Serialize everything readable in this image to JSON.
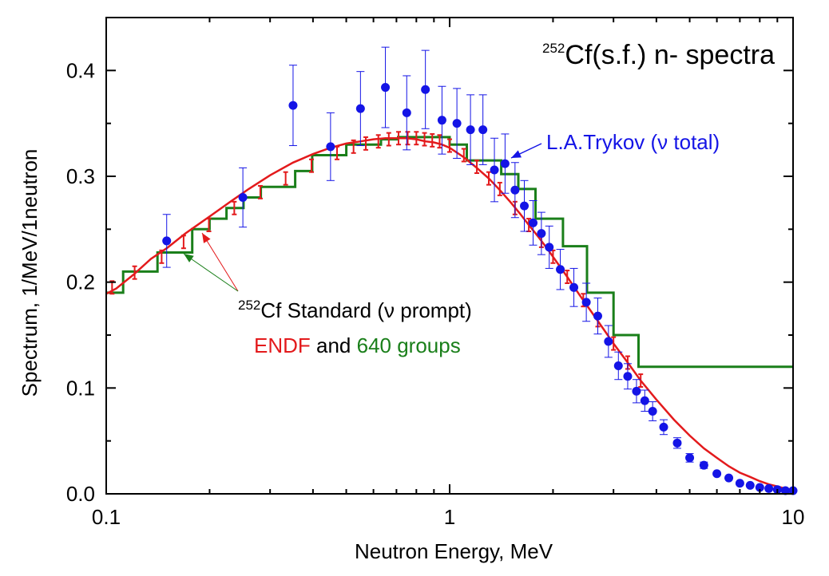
{
  "chart_data": {
    "type": "line",
    "title": "Cf(s.f.) n- spectra",
    "title_superscript": "252",
    "xlabel": "Neutron Energy, MeV",
    "ylabel": "Spectrum, 1/MeV/1neutron",
    "x_scale": "log",
    "xlim": [
      0.1,
      10
    ],
    "ylim": [
      0.0,
      0.45
    ],
    "x_ticks": [
      {
        "value": 0.1,
        "label": "0.1"
      },
      {
        "value": 1,
        "label": "1"
      },
      {
        "value": 10,
        "label": "10"
      }
    ],
    "y_ticks": [
      {
        "value": 0.0,
        "label": "0.0"
      },
      {
        "value": 0.1,
        "label": "0.1"
      },
      {
        "value": 0.2,
        "label": "0.2"
      },
      {
        "value": 0.3,
        "label": "0.3"
      },
      {
        "value": 0.4,
        "label": "0.4"
      }
    ],
    "grid": false,
    "colors": {
      "endf": "#e31a1c",
      "groups": "#1a7f1a",
      "trykov": "#1414e6"
    },
    "annotations": {
      "standard_sup": "252",
      "standard_text": "Cf Standard (ν prompt)",
      "endf_word": "ENDF",
      "and_word": " and ",
      "groups_word": "640 groups",
      "trykov_label": "L.A.Trykov (ν total)"
    },
    "series": [
      {
        "name": "ENDF",
        "style": "line-with-errorbars",
        "x": [
          0.1,
          0.107,
          0.12,
          0.135,
          0.15,
          0.17,
          0.2,
          0.23,
          0.26,
          0.3,
          0.35,
          0.4,
          0.45,
          0.5,
          0.55,
          0.6,
          0.65,
          0.7,
          0.75,
          0.8,
          0.85,
          0.9,
          0.95,
          1.0,
          1.1,
          1.2,
          1.3,
          1.4,
          1.5,
          1.6,
          1.7,
          1.8,
          1.9,
          2.0,
          2.2,
          2.4,
          2.6,
          2.8,
          3.0,
          3.3,
          3.6,
          4.0,
          4.5,
          5.0,
          5.5,
          6.0,
          6.5,
          7.0,
          7.5,
          8.0,
          8.5,
          9.0,
          9.5,
          10.0
        ],
        "y": [
          0.189,
          0.194,
          0.207,
          0.222,
          0.232,
          0.246,
          0.262,
          0.276,
          0.288,
          0.301,
          0.313,
          0.321,
          0.327,
          0.331,
          0.333,
          0.335,
          0.336,
          0.336,
          0.336,
          0.335,
          0.333,
          0.332,
          0.33,
          0.327,
          0.318,
          0.308,
          0.298,
          0.287,
          0.276,
          0.265,
          0.254,
          0.244,
          0.234,
          0.224,
          0.205,
          0.187,
          0.171,
          0.156,
          0.142,
          0.124,
          0.107,
          0.089,
          0.07,
          0.055,
          0.043,
          0.034,
          0.026,
          0.02,
          0.016,
          0.012,
          0.009,
          0.007,
          0.005,
          0.004
        ],
        "err_x": [
          0.104,
          0.121,
          0.145,
          0.168,
          0.199,
          0.236,
          0.281,
          0.333,
          0.396,
          0.47,
          0.525,
          0.57,
          0.62,
          0.665,
          0.71,
          0.755,
          0.8,
          0.845,
          0.89,
          0.935,
          1.0,
          1.1,
          1.2,
          1.3,
          1.4,
          1.55,
          1.7,
          1.85,
          2.0,
          2.2,
          2.45,
          2.7,
          3.0,
          3.3,
          3.6
        ],
        "err_y": [
          0.195,
          0.209,
          0.224,
          0.238,
          0.254,
          0.27,
          0.285,
          0.298,
          0.31,
          0.322,
          0.328,
          0.331,
          0.333,
          0.335,
          0.336,
          0.336,
          0.336,
          0.335,
          0.334,
          0.333,
          0.329,
          0.32,
          0.309,
          0.298,
          0.288,
          0.27,
          0.254,
          0.239,
          0.224,
          0.205,
          0.183,
          0.164,
          0.142,
          0.124,
          0.107
        ],
        "err": 0.006
      },
      {
        "name": "640 groups",
        "style": "step",
        "edges": [
          0.1,
          0.112,
          0.141,
          0.178,
          0.2,
          0.224,
          0.251,
          0.282,
          0.355,
          0.398,
          0.5,
          0.631,
          0.708,
          1.0,
          1.122,
          1.413,
          1.585,
          1.778,
          2.138,
          2.512,
          3.0,
          3.548,
          10.0
        ],
        "values": [
          0.19,
          0.21,
          0.228,
          0.25,
          0.26,
          0.27,
          0.28,
          0.29,
          0.305,
          0.32,
          0.33,
          0.335,
          0.337,
          0.33,
          0.315,
          0.302,
          0.288,
          0.26,
          0.234,
          0.19,
          0.15,
          0.12,
          0.12
        ]
      },
      {
        "name": "L.A.Trykov (ν total)",
        "style": "points-with-errorbars",
        "x": [
          0.15,
          0.25,
          0.35,
          0.45,
          0.55,
          0.65,
          0.75,
          0.85,
          0.95,
          1.05,
          1.15,
          1.25,
          1.35,
          1.45,
          1.55,
          1.65,
          1.75,
          1.85,
          1.95,
          2.1,
          2.3,
          2.5,
          2.7,
          2.9,
          3.1,
          3.3,
          3.5,
          3.7,
          3.9,
          4.2,
          4.6,
          5.0,
          5.5,
          6.0,
          6.5,
          7.0,
          7.5,
          8.0,
          8.5,
          9.0,
          9.5,
          10.0
        ],
        "y": [
          0.239,
          0.28,
          0.367,
          0.328,
          0.364,
          0.384,
          0.36,
          0.382,
          0.353,
          0.35,
          0.344,
          0.344,
          0.306,
          0.312,
          0.287,
          0.272,
          0.256,
          0.246,
          0.233,
          0.212,
          0.195,
          0.181,
          0.168,
          0.144,
          0.121,
          0.111,
          0.097,
          0.088,
          0.078,
          0.063,
          0.048,
          0.034,
          0.027,
          0.019,
          0.015,
          0.01,
          0.008,
          0.006,
          0.005,
          0.004,
          0.003,
          0.003
        ],
        "err": [
          0.025,
          0.028,
          0.038,
          0.032,
          0.035,
          0.038,
          0.035,
          0.037,
          0.032,
          0.033,
          0.033,
          0.033,
          0.03,
          0.028,
          0.026,
          0.024,
          0.021,
          0.02,
          0.02,
          0.019,
          0.018,
          0.018,
          0.017,
          0.015,
          0.013,
          0.012,
          0.011,
          0.01,
          0.009,
          0.007,
          0.005,
          0.004,
          0.003,
          0.002,
          0.002,
          0.001,
          0.001,
          0.001,
          0.001,
          0.001,
          0.001,
          0.001
        ]
      }
    ]
  }
}
